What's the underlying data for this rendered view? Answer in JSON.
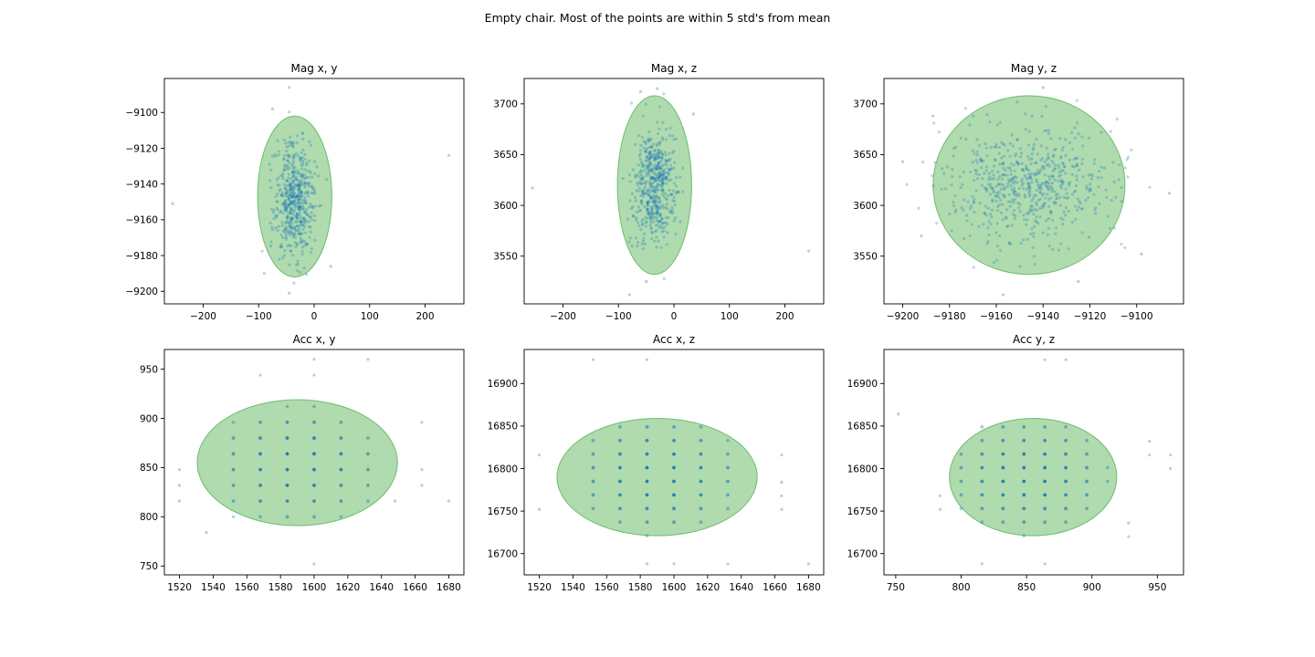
{
  "figure": {
    "suptitle": "Empty chair. Most of the points are within 5 std's from mean"
  },
  "colors": {
    "points": "#1f77b4",
    "ellipse_fill": "#2ca02c",
    "ellipse_edge": "#2ca02c"
  },
  "chart_data": [
    {
      "type": "scatter",
      "title": "Mag x, y",
      "xlim": [
        -270,
        270
      ],
      "ylim": [
        -9207,
        -9081
      ],
      "xticks": [
        -200,
        -100,
        0,
        100,
        200
      ],
      "yticks": [
        -9200,
        -9180,
        -9160,
        -9140,
        -9120,
        -9100,
        -9080
      ],
      "cloud": {
        "center": [
          -35,
          -9148
        ],
        "std": [
          18,
          16
        ],
        "n": 520,
        "spread": "gaussian"
      },
      "grid_points": [],
      "outliers": [
        [
          -255,
          -9151
        ],
        [
          243,
          -9124
        ],
        [
          -45,
          -9086
        ],
        [
          -75,
          -9098
        ],
        [
          -45,
          -9201
        ],
        [
          -90,
          -9190
        ],
        [
          30,
          -9186
        ]
      ],
      "ellipse": {
        "center": [
          -35,
          -9147
        ],
        "radius": [
          67,
          45
        ]
      },
      "grid": false
    },
    {
      "type": "scatter",
      "title": "Mag x, z",
      "xlim": [
        -270,
        270
      ],
      "ylim": [
        3503,
        3725
      ],
      "xticks": [
        -200,
        -100,
        0,
        100,
        200
      ],
      "yticks": [
        3550,
        3600,
        3650,
        3700
      ],
      "cloud": {
        "center": [
          -35,
          3620
        ],
        "std": [
          18,
          28
        ],
        "n": 520,
        "spread": "gaussian"
      },
      "grid_points": [],
      "outliers": [
        [
          -255,
          3617
        ],
        [
          243,
          3555
        ],
        [
          -60,
          3712
        ],
        [
          -80,
          3512
        ],
        [
          -50,
          3525
        ],
        [
          35,
          3690
        ],
        [
          -30,
          3715
        ]
      ],
      "ellipse": {
        "center": [
          -35,
          3620
        ],
        "radius": [
          67,
          88
        ]
      },
      "grid": false
    },
    {
      "type": "scatter",
      "title": "Mag y, z",
      "xlim": [
        -9208,
        -9080
      ],
      "ylim": [
        3503,
        3725
      ],
      "xticks": [
        -9200,
        -9180,
        -9160,
        -9140,
        -9120,
        -9100
      ],
      "yticks": [
        3550,
        3600,
        3650,
        3700
      ],
      "cloud": {
        "center": [
          -9146,
          3620
        ],
        "std": [
          17,
          28
        ],
        "n": 600,
        "spread": "gaussian"
      },
      "grid_points": [],
      "outliers": [
        [
          -9086,
          3612
        ],
        [
          -9200,
          3643
        ],
        [
          -9157,
          3512
        ],
        [
          -9187,
          3688
        ],
        [
          -9098,
          3552
        ],
        [
          -9192,
          3570
        ],
        [
          -9125,
          3525
        ],
        [
          -9140,
          3716
        ]
      ],
      "ellipse": {
        "center": [
          -9146,
          3620
        ],
        "radius": [
          41,
          88
        ]
      },
      "grid": false
    },
    {
      "type": "scatter",
      "title": "Acc x, y",
      "xlim": [
        1511,
        1689
      ],
      "ylim": [
        741,
        970
      ],
      "xticks": [
        1520,
        1540,
        1560,
        1580,
        1600,
        1620,
        1640,
        1660,
        1680
      ],
      "yticks": [
        750,
        800,
        850,
        900,
        950
      ],
      "cloud": null,
      "grid_points": {
        "x0": 1536,
        "dx": 16,
        "nx": 8,
        "y0": 784,
        "dy": 16,
        "ny": 11,
        "center": [
          1590,
          852
        ],
        "std": [
          30,
          35
        ]
      },
      "outliers": [
        [
          1520,
          848
        ],
        [
          1520,
          832
        ],
        [
          1520,
          816
        ],
        [
          1536,
          784
        ],
        [
          1568,
          944
        ],
        [
          1600,
          944
        ],
        [
          1600,
          960
        ],
        [
          1632,
          960
        ],
        [
          1600,
          752
        ],
        [
          1680,
          816
        ],
        [
          1664,
          896
        ],
        [
          1664,
          832
        ],
        [
          1664,
          848
        ],
        [
          1648,
          816
        ],
        [
          1552,
          800
        ]
      ],
      "ellipse": {
        "center": [
          1590,
          855
        ],
        "radius": [
          59.5,
          64
        ]
      },
      "grid": false
    },
    {
      "type": "scatter",
      "title": "Acc x, z",
      "xlim": [
        1511,
        1689
      ],
      "ylim": [
        16675,
        16940
      ],
      "xticks": [
        1520,
        1540,
        1560,
        1580,
        1600,
        1620,
        1640,
        1660,
        1680
      ],
      "yticks": [
        16700,
        16750,
        16800,
        16850,
        16900
      ],
      "cloud": null,
      "grid_points": {
        "x0": 1536,
        "dx": 16,
        "nx": 8,
        "y0": 16721,
        "dy": 16,
        "ny": 10,
        "center": [
          1590,
          16792
        ],
        "std": [
          30,
          40
        ]
      },
      "outliers": [
        [
          1520,
          16816
        ],
        [
          1520,
          16752
        ],
        [
          1552,
          16928
        ],
        [
          1584,
          16928
        ],
        [
          1584,
          16688
        ],
        [
          1600,
          16688
        ],
        [
          1632,
          16688
        ],
        [
          1680,
          16688
        ],
        [
          1664,
          16816
        ],
        [
          1664,
          16768
        ],
        [
          1664,
          16784
        ],
        [
          1664,
          16752
        ]
      ],
      "ellipse": {
        "center": [
          1590,
          16790
        ],
        "radius": [
          59.5,
          69
        ]
      },
      "grid": false
    },
    {
      "type": "scatter",
      "title": "Acc y, z",
      "xlim": [
        741,
        970
      ],
      "ylim": [
        16675,
        16940
      ],
      "xticks": [
        750,
        800,
        850,
        900,
        950
      ],
      "yticks": [
        16700,
        16750,
        16800,
        16850,
        16900
      ],
      "cloud": null,
      "grid_points": {
        "x0": 800,
        "dx": 16,
        "nx": 8,
        "y0": 16721,
        "dy": 16,
        "ny": 10,
        "center": [
          852,
          16792
        ],
        "std": [
          35,
          40
        ]
      },
      "outliers": [
        [
          752,
          16864
        ],
        [
          864,
          16928
        ],
        [
          880,
          16928
        ],
        [
          816,
          16688
        ],
        [
          864,
          16688
        ],
        [
          944,
          16832
        ],
        [
          944,
          16816
        ],
        [
          960,
          16816
        ],
        [
          960,
          16800
        ],
        [
          928,
          16720
        ],
        [
          928,
          16736
        ],
        [
          784,
          16752
        ],
        [
          784,
          16768
        ]
      ],
      "ellipse": {
        "center": [
          855,
          16790
        ],
        "radius": [
          64,
          69
        ]
      },
      "grid": false
    }
  ]
}
